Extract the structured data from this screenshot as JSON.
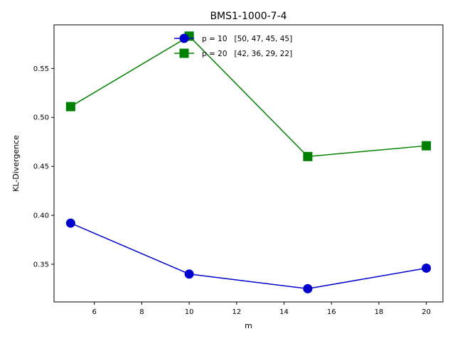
{
  "chart_data": {
    "type": "line",
    "title": "BMS1-1000-7-4",
    "xlabel": "m",
    "ylabel": "KL-Divergence",
    "xlim": [
      4.3,
      20.7
    ],
    "ylim": [
      0.3115,
      0.5945
    ],
    "xticks": [
      6,
      8,
      10,
      12,
      14,
      16,
      18,
      20
    ],
    "yticks": [
      0.35,
      0.4,
      0.45,
      0.5,
      0.55
    ],
    "ytick_labels": [
      "0.35",
      "0.40",
      "0.45",
      "0.50",
      "0.55"
    ],
    "grid": false,
    "legend_position": "top-center",
    "x": [
      5,
      10,
      15,
      20
    ],
    "series": [
      {
        "name": "p = 10   [50, 47, 45, 45]",
        "values": [
          0.392,
          0.34,
          0.325,
          0.346
        ],
        "color": "#0000cc",
        "marker": "circle"
      },
      {
        "name": "p = 20   [42, 36, 29, 22]",
        "values": [
          0.511,
          0.583,
          0.46,
          0.471
        ],
        "color": "#008000",
        "marker": "square"
      }
    ]
  }
}
